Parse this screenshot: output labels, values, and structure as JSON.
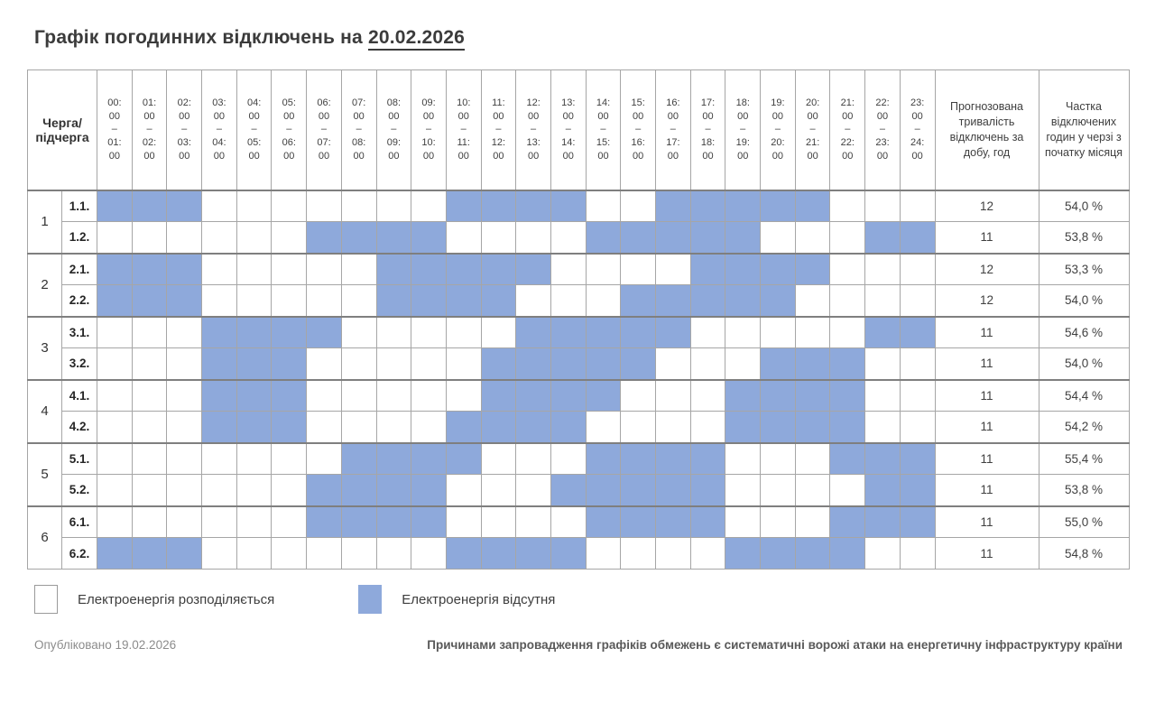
{
  "title": {
    "prefix": "Графік погодинних відключень на ",
    "date": "20.02.2026"
  },
  "colors": {
    "outage": "#8EA9DB",
    "available": "#FFFFFF",
    "grid": "#A6A6A6",
    "group_border": "#7F7F7F",
    "text": "#404040"
  },
  "table": {
    "corner_header": "Черга/підчерга",
    "summary_headers": [
      "Прогнозована тривалість відключень за добу, год",
      "Частка відключених годин у черзі з початку місяця"
    ]
  },
  "legend": [
    {
      "state": "off",
      "label": "Електроенергія розподіляється"
    },
    {
      "state": "on",
      "label": "Електроенергія відсутня"
    }
  ],
  "footer": {
    "published": "Опубліковано 19.02.2026",
    "note": "Причинами запровадження графіків обмежень є систематичні ворожі атаки на енергетичну інфраструктуру країни"
  },
  "chart_data": {
    "type": "heatmap",
    "title": "Графік погодинних відключень на 20.02.2026",
    "x_categories": [
      "00:00–01:00",
      "01:00–02:00",
      "02:00–03:00",
      "03:00–04:00",
      "04:00–05:00",
      "05:00–06:00",
      "06:00–07:00",
      "07:00–08:00",
      "08:00–09:00",
      "09:00–10:00",
      "10:00–11:00",
      "11:00–12:00",
      "12:00–13:00",
      "13:00–14:00",
      "14:00–15:00",
      "15:00–16:00",
      "16:00–17:00",
      "17:00–18:00",
      "18:00–19:00",
      "19:00–20:00",
      "20:00–21:00",
      "21:00–22:00",
      "22:00–23:00",
      "23:00–24:00"
    ],
    "legend_mapping": {
      "0": "Електроенергія розподіляється",
      "1": "Електроенергія відсутня"
    },
    "rows": [
      {
        "queue": "1",
        "subqueue": "1.1.",
        "outage": [
          1,
          1,
          1,
          0,
          0,
          0,
          0,
          0,
          0,
          0,
          1,
          1,
          1,
          1,
          0,
          0,
          1,
          1,
          1,
          1,
          1,
          0,
          0,
          0
        ],
        "duration_hours": "12",
        "share": "54,0 %"
      },
      {
        "queue": "1",
        "subqueue": "1.2.",
        "outage": [
          0,
          0,
          0,
          0,
          0,
          0,
          1,
          1,
          1,
          1,
          0,
          0,
          0,
          0,
          1,
          1,
          1,
          1,
          1,
          0,
          0,
          0,
          1,
          1
        ],
        "duration_hours": "11",
        "share": "53,8 %"
      },
      {
        "queue": "2",
        "subqueue": "2.1.",
        "outage": [
          1,
          1,
          1,
          0,
          0,
          0,
          0,
          0,
          1,
          1,
          1,
          1,
          1,
          0,
          0,
          0,
          0,
          1,
          1,
          1,
          1,
          0,
          0,
          0
        ],
        "duration_hours": "12",
        "share": "53,3 %"
      },
      {
        "queue": "2",
        "subqueue": "2.2.",
        "outage": [
          1,
          1,
          1,
          0,
          0,
          0,
          0,
          0,
          1,
          1,
          1,
          1,
          0,
          0,
          0,
          1,
          1,
          1,
          1,
          1,
          0,
          0,
          0,
          0
        ],
        "duration_hours": "12",
        "share": "54,0 %"
      },
      {
        "queue": "3",
        "subqueue": "3.1.",
        "outage": [
          0,
          0,
          0,
          1,
          1,
          1,
          1,
          0,
          0,
          0,
          0,
          0,
          1,
          1,
          1,
          1,
          1,
          0,
          0,
          0,
          0,
          0,
          1,
          1
        ],
        "duration_hours": "11",
        "share": "54,6 %"
      },
      {
        "queue": "3",
        "subqueue": "3.2.",
        "outage": [
          0,
          0,
          0,
          1,
          1,
          1,
          0,
          0,
          0,
          0,
          0,
          1,
          1,
          1,
          1,
          1,
          0,
          0,
          0,
          1,
          1,
          1,
          0,
          0
        ],
        "duration_hours": "11",
        "share": "54,0 %"
      },
      {
        "queue": "4",
        "subqueue": "4.1.",
        "outage": [
          0,
          0,
          0,
          1,
          1,
          1,
          0,
          0,
          0,
          0,
          0,
          1,
          1,
          1,
          1,
          0,
          0,
          0,
          1,
          1,
          1,
          1,
          0,
          0
        ],
        "duration_hours": "11",
        "share": "54,4 %"
      },
      {
        "queue": "4",
        "subqueue": "4.2.",
        "outage": [
          0,
          0,
          0,
          1,
          1,
          1,
          0,
          0,
          0,
          0,
          1,
          1,
          1,
          1,
          0,
          0,
          0,
          0,
          1,
          1,
          1,
          1,
          0,
          0
        ],
        "duration_hours": "11",
        "share": "54,2 %"
      },
      {
        "queue": "5",
        "subqueue": "5.1.",
        "outage": [
          0,
          0,
          0,
          0,
          0,
          0,
          0,
          1,
          1,
          1,
          1,
          0,
          0,
          0,
          1,
          1,
          1,
          1,
          0,
          0,
          0,
          1,
          1,
          1
        ],
        "duration_hours": "11",
        "share": "55,4 %"
      },
      {
        "queue": "5",
        "subqueue": "5.2.",
        "outage": [
          0,
          0,
          0,
          0,
          0,
          0,
          1,
          1,
          1,
          1,
          0,
          0,
          0,
          1,
          1,
          1,
          1,
          1,
          0,
          0,
          0,
          0,
          1,
          1
        ],
        "duration_hours": "11",
        "share": "53,8 %"
      },
      {
        "queue": "6",
        "subqueue": "6.1.",
        "outage": [
          0,
          0,
          0,
          0,
          0,
          0,
          1,
          1,
          1,
          1,
          0,
          0,
          0,
          0,
          1,
          1,
          1,
          1,
          0,
          0,
          0,
          1,
          1,
          1
        ],
        "duration_hours": "11",
        "share": "55,0 %"
      },
      {
        "queue": "6",
        "subqueue": "6.2.",
        "outage": [
          1,
          1,
          1,
          0,
          0,
          0,
          0,
          0,
          0,
          0,
          1,
          1,
          1,
          1,
          0,
          0,
          0,
          0,
          1,
          1,
          1,
          1,
          0,
          0
        ],
        "duration_hours": "11",
        "share": "54,8 %"
      }
    ]
  }
}
